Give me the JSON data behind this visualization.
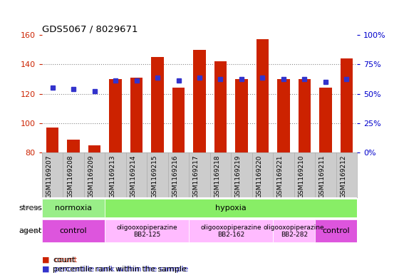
{
  "title": "GDS5067 / 8029671",
  "samples": [
    "GSM1169207",
    "GSM1169208",
    "GSM1169209",
    "GSM1169213",
    "GSM1169214",
    "GSM1169215",
    "GSM1169216",
    "GSM1169217",
    "GSM1169218",
    "GSM1169219",
    "GSM1169220",
    "GSM1169221",
    "GSM1169210",
    "GSM1169211",
    "GSM1169212"
  ],
  "counts": [
    97,
    89,
    85,
    130,
    131,
    145,
    124,
    150,
    142,
    130,
    157,
    130,
    130,
    124,
    144
  ],
  "percentile_ranks": [
    124,
    123,
    122,
    129,
    129,
    131,
    129,
    131,
    130,
    130,
    131,
    130,
    130,
    128,
    130
  ],
  "bar_bottom": 80,
  "ylim_left": [
    80,
    160
  ],
  "ylim_right": [
    0,
    100
  ],
  "yticks_left": [
    80,
    100,
    120,
    140,
    160
  ],
  "yticks_right": [
    0,
    25,
    50,
    75,
    100
  ],
  "ytick_right_labels": [
    "0%",
    "25%",
    "50%",
    "75%",
    "100%"
  ],
  "bar_color": "#cc2200",
  "percentile_color": "#3333cc",
  "stress_groups": [
    {
      "label": "normoxia",
      "start": 0,
      "end": 3,
      "color": "#99ee88"
    },
    {
      "label": "hypoxia",
      "start": 3,
      "end": 15,
      "color": "#88ee66"
    }
  ],
  "agent_groups": [
    {
      "label": "control",
      "start": 0,
      "end": 3,
      "color": "#dd55dd",
      "text_size": "large"
    },
    {
      "label": "oligooxopiperazine\nBB2-125",
      "start": 3,
      "end": 7,
      "color": "#ffbbff",
      "text_size": "small"
    },
    {
      "label": "oligooxopiperazine\nBB2-162",
      "start": 7,
      "end": 11,
      "color": "#ffbbff",
      "text_size": "small"
    },
    {
      "label": "oligooxopiperazine\nBB2-282",
      "start": 11,
      "end": 13,
      "color": "#ffbbff",
      "text_size": "small"
    },
    {
      "label": "control",
      "start": 13,
      "end": 15,
      "color": "#dd55dd",
      "text_size": "large"
    }
  ],
  "background_color": "#ffffff",
  "grid_color": "#888888",
  "tick_color_left": "#cc2200",
  "tick_color_right": "#0000cc",
  "xlabel_bg_color": "#cccccc"
}
